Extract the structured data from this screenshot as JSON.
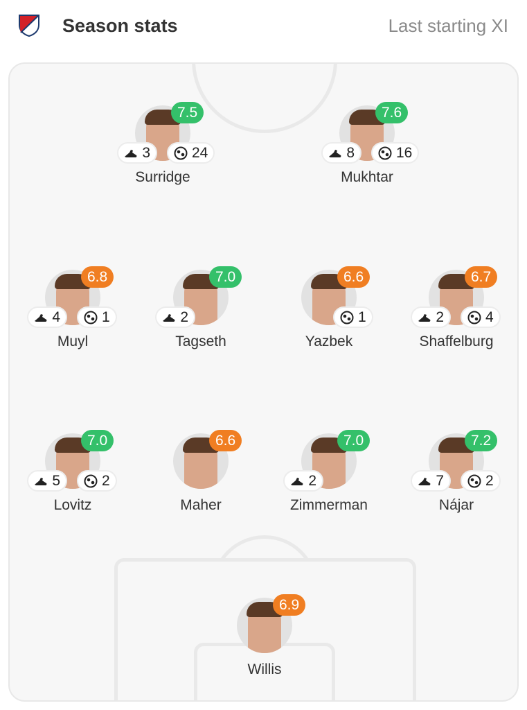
{
  "header": {
    "logo": "MLS",
    "title": "Season stats",
    "subtitle": "Last starting XI"
  },
  "colors": {
    "good": "#34c06a",
    "ok": "#f07e22"
  },
  "players": [
    {
      "name": "Surridge",
      "rating": "7.5",
      "rating_color": "good",
      "assists": "3",
      "goals": "24"
    },
    {
      "name": "Mukhtar",
      "rating": "7.6",
      "rating_color": "good",
      "assists": "8",
      "goals": "16"
    },
    {
      "name": "Muyl",
      "rating": "6.8",
      "rating_color": "ok",
      "assists": "4",
      "goals": "1"
    },
    {
      "name": "Tagseth",
      "rating": "7.0",
      "rating_color": "good",
      "assists": "2",
      "goals": null
    },
    {
      "name": "Yazbek",
      "rating": "6.6",
      "rating_color": "ok",
      "assists": null,
      "goals": "1"
    },
    {
      "name": "Shaffelburg",
      "rating": "6.7",
      "rating_color": "ok",
      "assists": "2",
      "goals": "4"
    },
    {
      "name": "Lovitz",
      "rating": "7.0",
      "rating_color": "good",
      "assists": "5",
      "goals": "2"
    },
    {
      "name": "Maher",
      "rating": "6.6",
      "rating_color": "ok",
      "assists": null,
      "goals": null
    },
    {
      "name": "Zimmerman",
      "rating": "7.0",
      "rating_color": "good",
      "assists": "2",
      "goals": null
    },
    {
      "name": "Nájar",
      "rating": "7.2",
      "rating_color": "good",
      "assists": "7",
      "goals": "2"
    },
    {
      "name": "Willis",
      "rating": "6.9",
      "rating_color": "ok",
      "assists": null,
      "goals": null
    }
  ]
}
